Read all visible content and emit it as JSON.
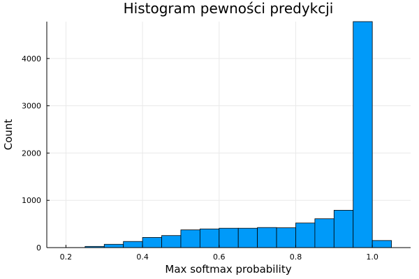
{
  "chart_data": {
    "type": "bar",
    "title": "Histogram pewności predykcji",
    "xlabel": "Max softmax probability",
    "ylabel": "Count",
    "xlim": [
      0.15,
      1.1
    ],
    "ylim": [
      0,
      4780
    ],
    "xticks": [
      0.2,
      0.4,
      0.6,
      0.8,
      1.0
    ],
    "xtick_labels": [
      "0.2",
      "0.4",
      "0.6",
      "0.8",
      "1.0"
    ],
    "yticks": [
      0,
      1000,
      2000,
      3000,
      4000
    ],
    "ytick_labels": [
      "0",
      "1000",
      "2000",
      "3000",
      "4000"
    ],
    "grid": true,
    "bar_color": "#009af9",
    "bins": [
      {
        "x0": 0.2,
        "x1": 0.25,
        "count": 2
      },
      {
        "x0": 0.25,
        "x1": 0.3,
        "count": 25
      },
      {
        "x0": 0.3,
        "x1": 0.35,
        "count": 70
      },
      {
        "x0": 0.35,
        "x1": 0.4,
        "count": 130
      },
      {
        "x0": 0.4,
        "x1": 0.45,
        "count": 215
      },
      {
        "x0": 0.45,
        "x1": 0.5,
        "count": 255
      },
      {
        "x0": 0.5,
        "x1": 0.55,
        "count": 375
      },
      {
        "x0": 0.55,
        "x1": 0.6,
        "count": 395
      },
      {
        "x0": 0.6,
        "x1": 0.65,
        "count": 410
      },
      {
        "x0": 0.65,
        "x1": 0.7,
        "count": 410
      },
      {
        "x0": 0.7,
        "x1": 0.75,
        "count": 425
      },
      {
        "x0": 0.75,
        "x1": 0.8,
        "count": 420
      },
      {
        "x0": 0.8,
        "x1": 0.85,
        "count": 520
      },
      {
        "x0": 0.85,
        "x1": 0.9,
        "count": 610
      },
      {
        "x0": 0.9,
        "x1": 0.95,
        "count": 790
      },
      {
        "x0": 0.95,
        "x1": 1.0,
        "count": 4780
      },
      {
        "x0": 1.0,
        "x1": 1.05,
        "count": 150
      }
    ]
  }
}
